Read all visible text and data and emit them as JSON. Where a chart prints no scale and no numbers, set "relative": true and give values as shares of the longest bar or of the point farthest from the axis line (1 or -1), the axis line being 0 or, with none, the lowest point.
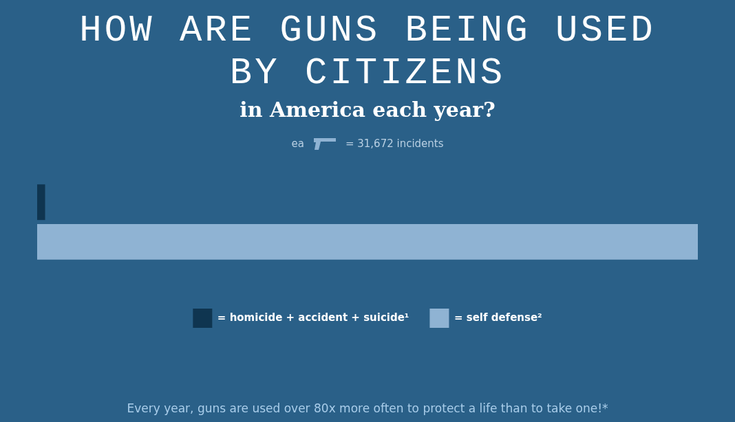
{
  "chart_data": {
    "type": "bar",
    "orientation": "horizontal",
    "relative": true,
    "title": "HOW ARE GUNS BEING USED BY CITIZENS",
    "subtitle": "in America each year?",
    "categories": [
      null
    ],
    "series": [
      {
        "name": "= homicide + accident + suicide¹",
        "color": "#0f3550",
        "values": [
          0.012
        ]
      },
      {
        "name": "= self defense²",
        "color": "#8fb3d3",
        "values": [
          1
        ]
      }
    ],
    "annotations": [
      "ea",
      "= 31,672 incidents",
      "Every year, guns are used over 80x more often to protect a life than to take one!*"
    ],
    "legend": "bottom"
  }
}
